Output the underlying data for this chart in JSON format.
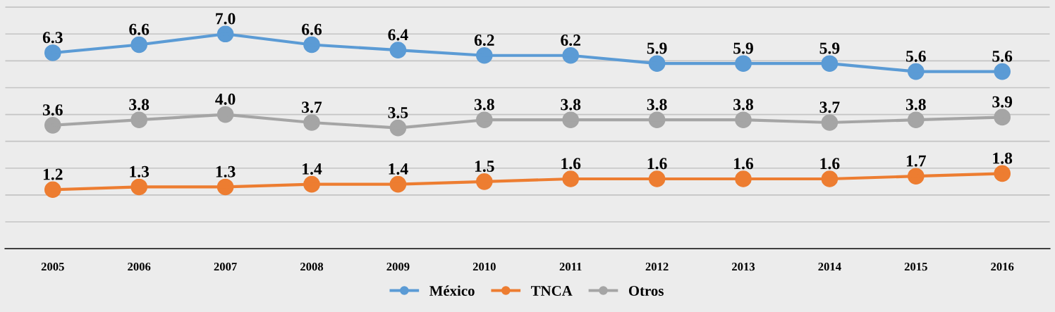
{
  "chart_data": {
    "type": "line",
    "categories": [
      "2005",
      "2006",
      "2007",
      "2008",
      "2009",
      "2010",
      "2011",
      "2012",
      "2013",
      "2014",
      "2015",
      "2016"
    ],
    "series": [
      {
        "name": "México",
        "color": "#5b9bd5",
        "values": [
          6.3,
          6.6,
          7.0,
          6.6,
          6.4,
          6.2,
          6.2,
          5.9,
          5.9,
          5.9,
          5.6,
          5.6
        ],
        "value_labels": [
          "6.3",
          "6.6",
          "7.0",
          "6.6",
          "6.4",
          "6.2",
          "6.2",
          "5.9",
          "5.9",
          "5.9",
          "5.6",
          "5.6"
        ]
      },
      {
        "name": "TNCA",
        "color": "#ed7d31",
        "values": [
          1.2,
          1.3,
          1.3,
          1.4,
          1.4,
          1.5,
          1.6,
          1.6,
          1.6,
          1.6,
          1.7,
          1.8
        ]
      },
      {
        "name": "Otros",
        "color": "#a5a5a5",
        "values": [
          3.6,
          3.8,
          4.0,
          3.7,
          3.5,
          3.8,
          3.8,
          3.8,
          3.8,
          3.7,
          3.8,
          3.9
        ],
        "value_labels": [
          "3.6",
          "3.8",
          "4.0",
          "3.7",
          "3.5",
          "3.8",
          "3.8",
          "3.8",
          "3.8",
          "3.7",
          "3.8",
          "3.9"
        ]
      }
    ],
    "tick_labels": "x",
    "grid": "y",
    "legend": "bottom",
    "marker": "circle",
    "line_style": "solid",
    "data_labels": true
  }
}
